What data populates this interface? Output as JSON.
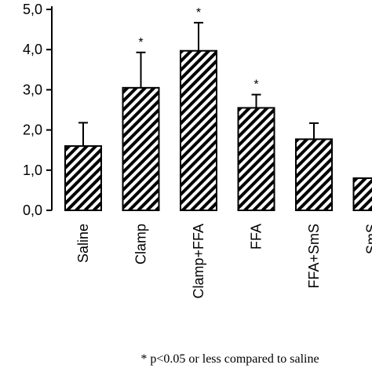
{
  "chart_data": {
    "type": "bar",
    "title": "",
    "xlabel": "",
    "ylabel": "",
    "ylim": [
      0,
      5
    ],
    "yticks": [
      "0,0",
      "1,0",
      "2,0",
      "3,0",
      "4,0",
      "5,0"
    ],
    "grid": false,
    "bar_fill": "diagonal-hatch",
    "categories": [
      "Saline",
      "Clamp",
      "Clamp+FFA",
      "FFA",
      "FFA+SmS",
      "SmS"
    ],
    "values": [
      1.6,
      3.05,
      3.97,
      2.55,
      1.77,
      0.8
    ],
    "errors": [
      0.58,
      0.88,
      0.7,
      0.33,
      0.4,
      null
    ],
    "significance": [
      "",
      "*",
      "*",
      "*",
      "",
      ""
    ],
    "footnote": "* p<0.05 or less compared to saline"
  },
  "colors": {
    "axis": "#000000",
    "hatch": "#000000",
    "background": "#ffffff"
  }
}
